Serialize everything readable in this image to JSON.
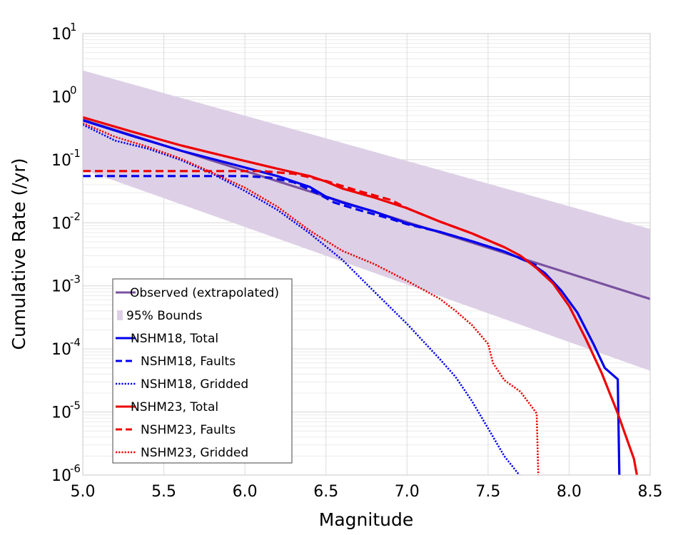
{
  "chart_data": {
    "type": "line",
    "xlabel": "Magnitude",
    "ylabel": "Cumulative Rate (/yr)",
    "xlim": [
      5.0,
      8.5
    ],
    "ylim_log10": [
      -6,
      1
    ],
    "y_scale": "log",
    "grid": true,
    "legend_position": "bottom-left",
    "x_ticks": [
      "5.0",
      "5.5",
      "6.0",
      "6.5",
      "7.0",
      "7.5",
      "8.0",
      "8.5"
    ],
    "y_ticks": [
      {
        "base": "10",
        "exp": "1"
      },
      {
        "base": "10",
        "exp": "0"
      },
      {
        "base": "10",
        "exp": "-1"
      },
      {
        "base": "10",
        "exp": "-2"
      },
      {
        "base": "10",
        "exp": "-3"
      },
      {
        "base": "10",
        "exp": "-4"
      },
      {
        "base": "10",
        "exp": "-5"
      },
      {
        "base": "10",
        "exp": "-6"
      }
    ],
    "bounds": {
      "name": "95% Bounds",
      "color": "#ddd0e6",
      "x": [
        5.0,
        8.5
      ],
      "upper": [
        2.6,
        0.008
      ],
      "lower": [
        0.07,
        4.5e-05
      ]
    },
    "series": [
      {
        "name": "Observed (extrapolated)",
        "color": "#7a52a0",
        "style": "solid",
        "x": [
          5.0,
          8.5
        ],
        "y": [
          0.43,
          0.00062
        ]
      },
      {
        "name": "NSHM18, Total",
        "color": "#0000ee",
        "style": "solid",
        "x": [
          5.0,
          5.3,
          5.6,
          5.9,
          6.2,
          6.4,
          6.5,
          6.6,
          6.8,
          7.0,
          7.2,
          7.4,
          7.6,
          7.75,
          7.85,
          7.95,
          8.05,
          8.15,
          8.22,
          8.3,
          8.31
        ],
        "y": [
          0.42,
          0.24,
          0.14,
          0.088,
          0.055,
          0.037,
          0.026,
          0.021,
          0.015,
          0.0098,
          0.0072,
          0.0051,
          0.0035,
          0.0024,
          0.0016,
          0.00085,
          0.00038,
          0.00012,
          5e-05,
          3.3e-05,
          1e-06
        ]
      },
      {
        "name": "NSHM18, Faults",
        "color": "#0000ee",
        "style": "dashed",
        "x": [
          5.0,
          6.0,
          6.15,
          6.3,
          6.45,
          6.55,
          6.7,
          6.9,
          7.0,
          7.2,
          7.4,
          7.6,
          7.8
        ],
        "y": [
          0.055,
          0.055,
          0.052,
          0.044,
          0.029,
          0.021,
          0.016,
          0.0115,
          0.0095,
          0.0072,
          0.0051,
          0.0035,
          0.0021
        ]
      },
      {
        "name": "NSHM18, Gridded",
        "color": "#0000ee",
        "style": "dotted",
        "x": [
          5.0,
          5.2,
          5.4,
          5.6,
          5.8,
          6.0,
          6.2,
          6.4,
          6.6,
          6.8,
          7.0,
          7.2,
          7.3,
          7.4,
          7.5,
          7.6,
          7.7
        ],
        "y": [
          0.36,
          0.2,
          0.15,
          0.1,
          0.06,
          0.032,
          0.016,
          0.0068,
          0.0026,
          0.0008,
          0.00025,
          7e-05,
          3.6e-05,
          1.5e-05,
          5.5e-06,
          2e-06,
          9.5e-07
        ]
      },
      {
        "name": "NSHM23, Total",
        "color": "#ee0000",
        "style": "solid",
        "x": [
          5.0,
          5.3,
          5.6,
          5.9,
          6.2,
          6.4,
          6.5,
          6.6,
          6.8,
          7.0,
          7.2,
          7.4,
          7.6,
          7.7,
          7.8,
          7.9,
          8.0,
          8.1,
          8.2,
          8.3,
          8.4,
          8.42
        ],
        "y": [
          0.47,
          0.28,
          0.17,
          0.11,
          0.072,
          0.055,
          0.045,
          0.035,
          0.025,
          0.017,
          0.0105,
          0.0068,
          0.0041,
          0.003,
          0.0019,
          0.0011,
          0.00048,
          0.00015,
          4.2e-05,
          9.5e-06,
          1.8e-06,
          9.5e-07
        ]
      },
      {
        "name": "NSHM23, Faults",
        "color": "#ee0000",
        "style": "dashed",
        "x": [
          5.0,
          6.1,
          6.3,
          6.5,
          6.7,
          6.9,
          7.0,
          7.2,
          7.4,
          7.6
        ],
        "y": [
          0.066,
          0.066,
          0.06,
          0.046,
          0.032,
          0.023,
          0.017,
          0.0105,
          0.0068,
          0.0041
        ]
      },
      {
        "name": "NSHM23, Gridded",
        "color": "#ee0000",
        "style": "dotted",
        "x": [
          5.0,
          5.2,
          5.4,
          5.6,
          5.8,
          6.0,
          6.2,
          6.4,
          6.6,
          6.8,
          7.0,
          7.2,
          7.3,
          7.4,
          7.5,
          7.53,
          7.6,
          7.7,
          7.8,
          7.81
        ],
        "y": [
          0.38,
          0.23,
          0.16,
          0.105,
          0.062,
          0.036,
          0.018,
          0.0075,
          0.0036,
          0.0022,
          0.0012,
          0.00063,
          0.0004,
          0.00024,
          0.00012,
          6e-05,
          3.2e-05,
          2.1e-05,
          9.5e-06,
          9.5e-07
        ]
      }
    ]
  }
}
